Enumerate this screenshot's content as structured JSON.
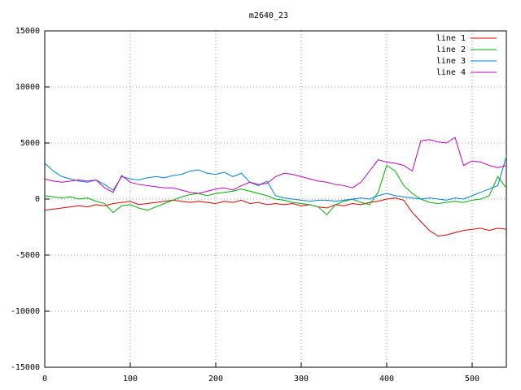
{
  "chart_data": {
    "type": "line",
    "title": "m2640_23",
    "x": [
      0,
      10,
      20,
      30,
      40,
      50,
      60,
      70,
      80,
      90,
      100,
      110,
      120,
      130,
      140,
      150,
      160,
      170,
      180,
      190,
      200,
      210,
      220,
      230,
      240,
      250,
      260,
      270,
      280,
      290,
      300,
      310,
      320,
      330,
      340,
      350,
      360,
      370,
      380,
      390,
      400,
      410,
      420,
      430,
      440,
      450,
      460,
      470,
      480,
      490,
      500,
      510,
      520,
      530,
      540
    ],
    "series": [
      {
        "name": "line 1",
        "color": "#e00000",
        "values": [
          -1000,
          -900,
          -800,
          -700,
          -600,
          -700,
          -500,
          -600,
          -400,
          -300,
          -200,
          -500,
          -400,
          -300,
          -200,
          -100,
          -200,
          -300,
          -200,
          -300,
          -400,
          -200,
          -300,
          -100,
          -400,
          -300,
          -500,
          -400,
          -500,
          -400,
          -600,
          -500,
          -700,
          -800,
          -500,
          -600,
          -400,
          -500,
          -300,
          -200,
          0,
          100,
          -100,
          -1200,
          -2000,
          -2800,
          -3300,
          -3200,
          -3000,
          -2800,
          -2700,
          -2600,
          -2800,
          -2600,
          -2700
        ]
      },
      {
        "name": "line 2",
        "color": "#00b000",
        "values": [
          300,
          200,
          100,
          200,
          0,
          100,
          -200,
          -400,
          -1200,
          -600,
          -500,
          -800,
          -1000,
          -700,
          -400,
          -100,
          200,
          400,
          500,
          300,
          500,
          600,
          700,
          900,
          700,
          500,
          300,
          0,
          -100,
          -300,
          -400,
          -500,
          -700,
          -1400,
          -500,
          -200,
          0,
          -300,
          -500,
          600,
          3000,
          2500,
          1200,
          500,
          0,
          -300,
          -400,
          -300,
          -200,
          -300,
          -100,
          0,
          300,
          2000,
          1000
        ]
      },
      {
        "name": "line 3",
        "color": "#0080e0",
        "values": [
          3200,
          2500,
          2000,
          1800,
          1600,
          1500,
          1700,
          1300,
          800,
          2000,
          1800,
          1700,
          1900,
          2000,
          1900,
          2100,
          2200,
          2500,
          2600,
          2300,
          2200,
          2400,
          2000,
          2300,
          1500,
          1200,
          1600,
          300,
          100,
          0,
          -100,
          -200,
          -100,
          -100,
          -200,
          -100,
          0,
          100,
          0,
          300,
          500,
          300,
          200,
          100,
          0,
          100,
          0,
          -100,
          100,
          0,
          300,
          600,
          900,
          1200,
          3800
        ]
      },
      {
        "name": "line 4",
        "color": "#c000c0",
        "values": [
          1800,
          1600,
          1500,
          1600,
          1700,
          1600,
          1700,
          1000,
          600,
          2100,
          1500,
          1300,
          1200,
          1100,
          1000,
          1000,
          800,
          600,
          500,
          700,
          900,
          1000,
          800,
          1200,
          1500,
          1300,
          1400,
          2000,
          2300,
          2200,
          2000,
          1800,
          1600,
          1500,
          1300,
          1200,
          1000,
          1500,
          2500,
          3500,
          3300,
          3200,
          3000,
          2500,
          5200,
          5300,
          5100,
          5000,
          5500,
          3000,
          3400,
          3300,
          3000,
          2800,
          3000
        ]
      }
    ],
    "xlim": [
      0,
      540
    ],
    "ylim": [
      -15000,
      15000
    ],
    "xticks": [
      0,
      100,
      200,
      300,
      400,
      500
    ],
    "yticks": [
      -15000,
      -10000,
      -5000,
      0,
      5000,
      10000,
      15000
    ],
    "grid": true,
    "legend": "top-right"
  }
}
